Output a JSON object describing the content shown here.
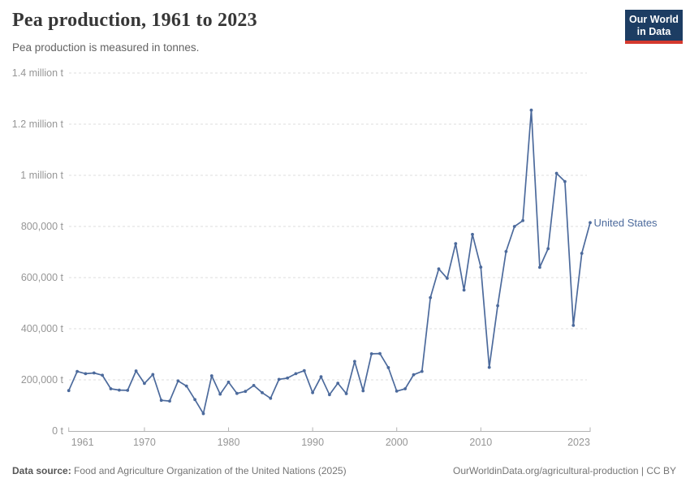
{
  "header": {
    "title": "Pea production, 1961 to 2023",
    "subtitle": "Pea production is measured in tonnes.",
    "logo_line1": "Our World",
    "logo_line2": "in Data",
    "logo_bg_color": "#1d3d63",
    "logo_accent_color": "#d4392e"
  },
  "chart_data": {
    "type": "line",
    "title": "Pea production, 1961 to 2023",
    "subtitle": "Pea production is measured in tonnes.",
    "unit": "t",
    "grid": "horizontal dashed",
    "legend_position": "end-of-line label",
    "ylim": [
      0,
      1400000
    ],
    "x": [
      1961,
      1962,
      1963,
      1964,
      1965,
      1966,
      1967,
      1968,
      1969,
      1970,
      1971,
      1972,
      1973,
      1974,
      1975,
      1976,
      1977,
      1978,
      1979,
      1980,
      1981,
      1982,
      1983,
      1984,
      1985,
      1986,
      1987,
      1988,
      1989,
      1990,
      1991,
      1992,
      1993,
      1994,
      1995,
      1996,
      1997,
      1998,
      1999,
      2000,
      2001,
      2002,
      2003,
      2004,
      2005,
      2006,
      2007,
      2008,
      2009,
      2010,
      2011,
      2012,
      2013,
      2014,
      2015,
      2016,
      2017,
      2018,
      2019,
      2020,
      2021,
      2022,
      2023
    ],
    "series": [
      {
        "name": "United States",
        "color": "#4c6a9c",
        "values": [
          158000,
          233000,
          224000,
          227000,
          218000,
          165000,
          160000,
          159000,
          235000,
          186000,
          221000,
          120000,
          117000,
          196000,
          176000,
          123000,
          68000,
          216000,
          144000,
          191000,
          147000,
          155000,
          178000,
          150000,
          128000,
          202000,
          207000,
          224000,
          236000,
          150000,
          212000,
          142000,
          187000,
          146000,
          272000,
          157000,
          302000,
          303000,
          248000,
          156000,
          165000,
          220000,
          233000,
          522000,
          634000,
          597000,
          733000,
          551000,
          769000,
          641000,
          249000,
          490000,
          702000,
          800000,
          823000,
          1255000,
          640000,
          713000,
          1008000,
          976000,
          413000,
          695000,
          815000
        ]
      }
    ],
    "yticks": [
      {
        "value": 0,
        "label": "0 t"
      },
      {
        "value": 200000,
        "label": "200,000 t"
      },
      {
        "value": 400000,
        "label": "400,000 t"
      },
      {
        "value": 600000,
        "label": "600,000 t"
      },
      {
        "value": 800000,
        "label": "800,000 t"
      },
      {
        "value": 1000000,
        "label": "1 million t"
      },
      {
        "value": 1200000,
        "label": "1.2 million t"
      },
      {
        "value": 1400000,
        "label": "1.4 million t"
      }
    ],
    "xticks": [
      {
        "value": 1961,
        "label": "1961"
      },
      {
        "value": 1970,
        "label": "1970"
      },
      {
        "value": 1980,
        "label": "1980"
      },
      {
        "value": 1990,
        "label": "1990"
      },
      {
        "value": 2000,
        "label": "2000"
      },
      {
        "value": 2010,
        "label": "2010"
      },
      {
        "value": 2023,
        "label": "2023"
      }
    ],
    "colors": {
      "gridline": "#dcdcdc",
      "axis": "#b3b3b3",
      "tick_label": "#969696",
      "line": "#4c6a9c"
    }
  },
  "footer": {
    "datasource_label": "Data source:",
    "datasource_text": " Food and Agriculture Organization of the United Nations (2025)",
    "credit": "OurWorldinData.org/agricultural-production | CC BY"
  }
}
